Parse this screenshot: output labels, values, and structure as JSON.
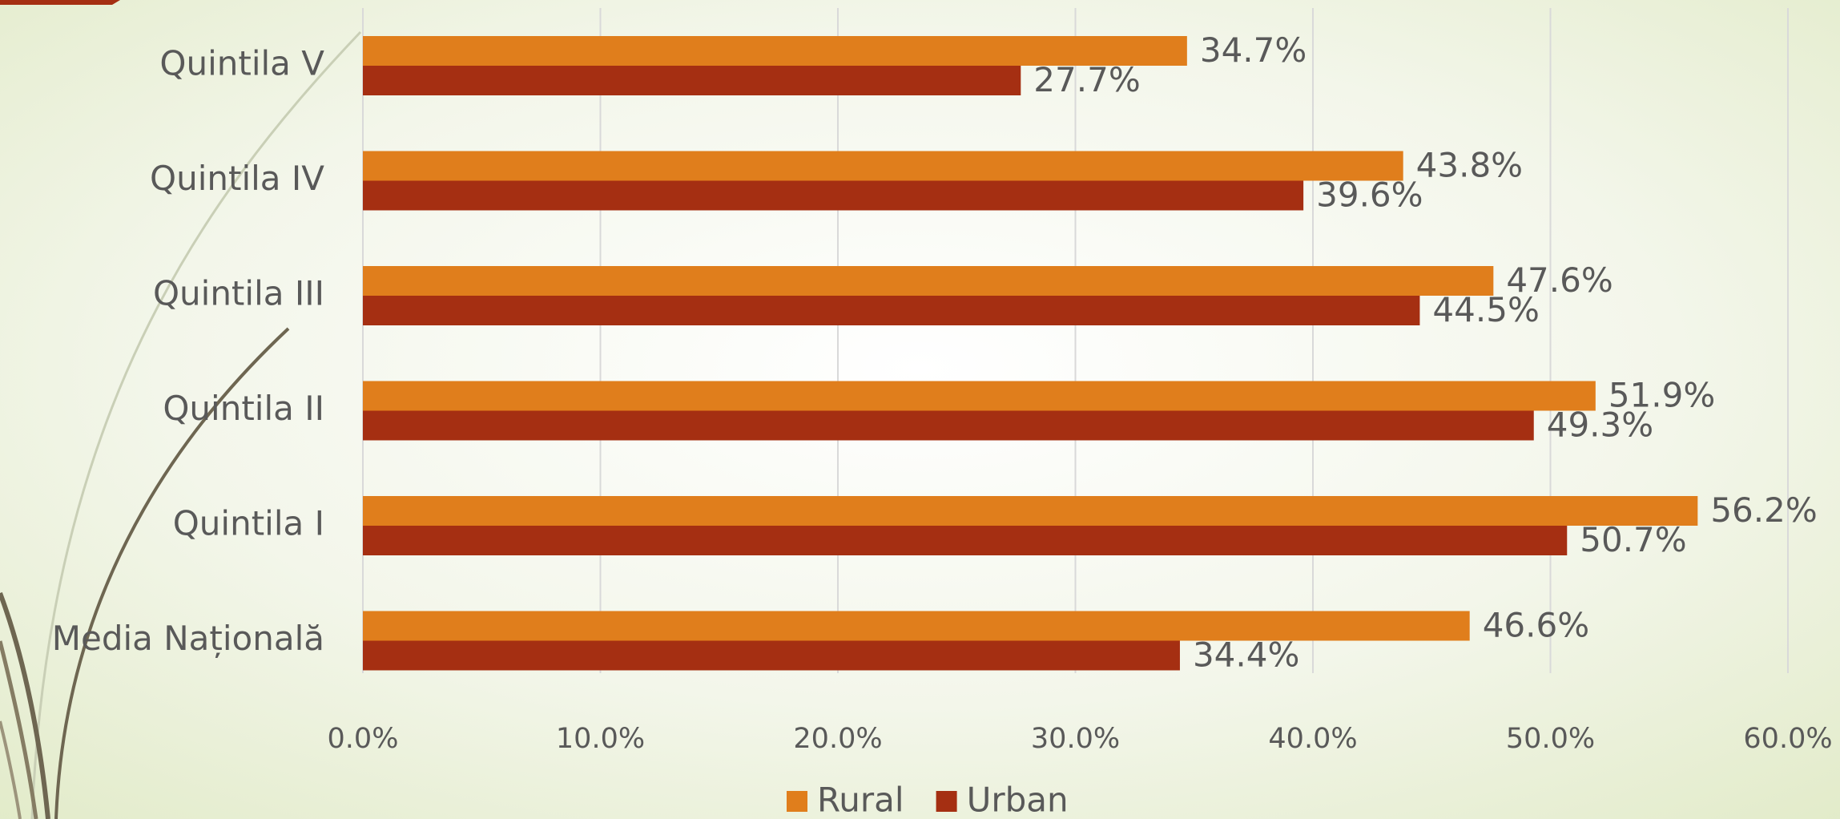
{
  "chart_data": {
    "type": "hbar",
    "categories": [
      "Quintila V",
      "Quintila IV",
      "Quintila III",
      "Quintila II",
      "Quintila I",
      "Media Națională"
    ],
    "series": [
      {
        "name": "Rural",
        "color": "#e07e1c",
        "values": [
          34.7,
          43.8,
          47.6,
          51.9,
          56.2,
          46.6
        ],
        "value_labels": [
          "34.7%",
          "43.8%",
          "47.6%",
          "51.9%",
          "56.2%",
          "46.6%"
        ]
      },
      {
        "name": "Urban",
        "color": "#a52f12",
        "values": [
          27.7,
          39.6,
          44.5,
          49.3,
          50.7,
          34.4
        ],
        "value_labels": [
          "27.7%",
          "39.6%",
          "44.5%",
          "49.3%",
          "50.7%",
          "34.4%"
        ]
      }
    ],
    "xlim": [
      0,
      60
    ],
    "xticks": [
      {
        "value": 0,
        "label": "0.0%"
      },
      {
        "value": 10,
        "label": "10.0%"
      },
      {
        "value": 20,
        "label": "20.0%"
      },
      {
        "value": 30,
        "label": "30.0%"
      },
      {
        "value": 40,
        "label": "40.0%"
      },
      {
        "value": 50,
        "label": "50.0%"
      },
      {
        "value": 60,
        "label": "60.0%"
      }
    ],
    "grid": true,
    "legend": "bottom"
  }
}
